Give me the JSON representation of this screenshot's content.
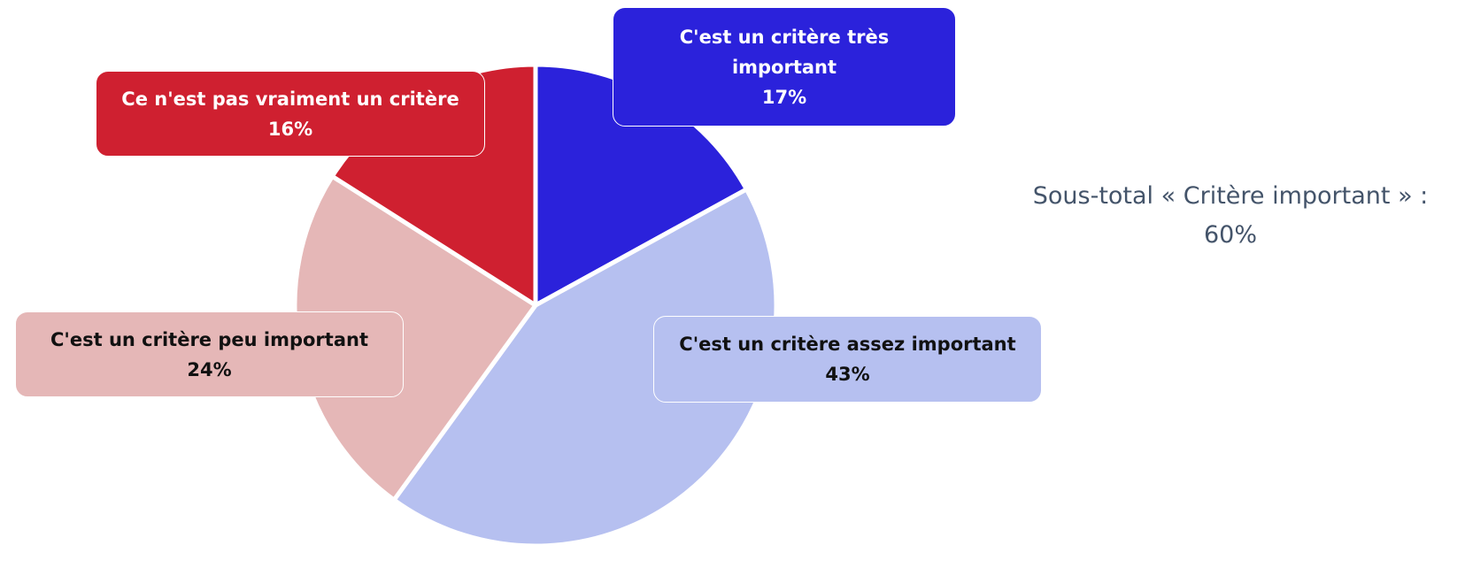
{
  "chart_data": {
    "type": "pie",
    "categories": [
      "C'est un critère très important",
      "C'est un critère assez important",
      "C'est un critère peu important",
      "Ce n'est pas vraiment un critère"
    ],
    "values": [
      17,
      43,
      24,
      16
    ],
    "value_labels": [
      "17%",
      "43%",
      "24%",
      "16%"
    ],
    "colors": [
      "#2b22db",
      "#b6c0f0",
      "#e5b7b7",
      "#cf2030"
    ],
    "annotation": "Sous-total « Critère important » : 60%"
  }
}
